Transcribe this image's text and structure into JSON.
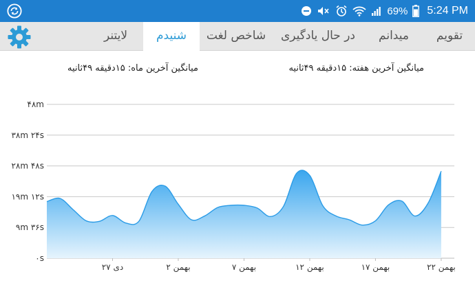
{
  "status_bar": {
    "battery_percent": "69%",
    "time": "5:24 PM",
    "icons": [
      "sync-icon",
      "do-not-disturb-icon",
      "vibrate-icon",
      "alarm-icon",
      "wifi-icon",
      "signal-icon",
      "battery-icon"
    ]
  },
  "tabs": [
    {
      "label": "تقویم",
      "active": false
    },
    {
      "label": "میدانم",
      "active": false
    },
    {
      "label": "در حال یادگیری",
      "active": false
    },
    {
      "label": "شاخص لغت",
      "active": false
    },
    {
      "label": "شنیدم",
      "active": true
    },
    {
      "label": "لایتنر",
      "active": false
    }
  ],
  "averages": {
    "week": "میانگین آخرین هفته: ۱۵دقیقه  ۴۹ثانیه",
    "month": "میانگین آخرین ماه: ۱۵دقیقه  ۴۹ثانیه"
  },
  "colors": {
    "accent": "#2c9bd6",
    "status_bar": "#1f7fcf",
    "area_top": "#3aa6ee",
    "area_bottom": "#e6f4fd"
  },
  "chart_data": {
    "type": "area",
    "y_tick_labels": [
      "۰s",
      "۹m ۳۶s",
      "۱۹m ۱۲s",
      "۲۸m ۴۸s",
      "۳۸m ۲۴s",
      "۴۸m"
    ],
    "y_tick_seconds": [
      0,
      576,
      1152,
      1728,
      2304,
      2880
    ],
    "ylim": [
      0,
      2880
    ],
    "x_tick_labels": [
      "۲۷ دی",
      "۲ بهمن",
      "۷ بهمن",
      "۱۲ بهمن",
      "۱۷ بهمن",
      "۲۲ بهمن"
    ],
    "x_tick_day_index": [
      5,
      10,
      15,
      20,
      25,
      30
    ],
    "x_range": [
      0,
      31
    ],
    "values_seconds": [
      1060,
      1120,
      910,
      700,
      690,
      800,
      660,
      690,
      1250,
      1350,
      1010,
      720,
      790,
      950,
      990,
      990,
      940,
      780,
      970,
      1590,
      1550,
      980,
      790,
      720,
      620,
      700,
      1000,
      1070,
      790,
      1030,
      1630
    ],
    "grid": true
  }
}
